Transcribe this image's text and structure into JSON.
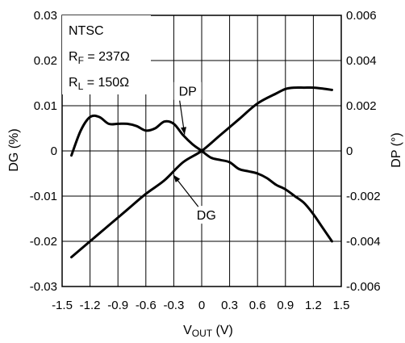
{
  "chart_data": {
    "type": "line",
    "xlabel": {
      "main": "V",
      "sub": "OUT",
      "unit": " (V)"
    },
    "ylabel_left": "DG (%)",
    "ylabel_right": "DP (°)",
    "xlim": [
      -1.5,
      1.5
    ],
    "ylim_left": [
      -0.03,
      0.03
    ],
    "ylim_right": [
      -0.006,
      0.006
    ],
    "grid": true,
    "x_ticks": [
      "-1.5",
      "-1.2",
      "-0.9",
      "-0.6",
      "-0.3",
      "0",
      "0.3",
      "0.6",
      "0.9",
      "1.2",
      "1.5"
    ],
    "y_ticks_left": [
      "0.03",
      "0.02",
      "0.01",
      "0",
      "-0.01",
      "-0.02",
      "-0.03"
    ],
    "y_ticks_right": [
      "0.006",
      "0.004",
      "0.002",
      "0",
      "-0.002",
      "-0.004",
      "-0.006"
    ],
    "conditions": [
      {
        "main": "NTSC",
        "sub": "",
        "rest": ""
      },
      {
        "main": "R",
        "sub": "F",
        "rest": " = 237Ω"
      },
      {
        "main": "R",
        "sub": "L",
        "rest": " = 150Ω"
      }
    ],
    "series": [
      {
        "name": "DG",
        "axis": "left",
        "x": [
          -1.4,
          -1.2,
          -1.0,
          -0.8,
          -0.6,
          -0.4,
          -0.2,
          0.0,
          0.2,
          0.4,
          0.6,
          0.8,
          0.9,
          1.0,
          1.1,
          1.2,
          1.3,
          1.4
        ],
        "y": [
          -0.0235,
          -0.02,
          -0.0165,
          -0.013,
          -0.0095,
          -0.0065,
          -0.0025,
          0.0,
          0.0035,
          0.007,
          0.0105,
          0.0127,
          0.0137,
          0.014,
          0.014,
          0.014,
          0.0138,
          0.0135
        ]
      },
      {
        "name": "DP",
        "axis": "right",
        "x": [
          -1.4,
          -1.3,
          -1.2,
          -1.1,
          -1.0,
          -0.9,
          -0.8,
          -0.7,
          -0.6,
          -0.5,
          -0.4,
          -0.3,
          -0.2,
          -0.1,
          0.0,
          0.1,
          0.2,
          0.3,
          0.4,
          0.5,
          0.6,
          0.7,
          0.8,
          0.9,
          1.0,
          1.1,
          1.2,
          1.3,
          1.4
        ],
        "y": [
          -0.0002,
          0.0009,
          0.0015,
          0.0015,
          0.0012,
          0.0012,
          0.0012,
          0.0011,
          0.0009,
          0.001,
          0.0013,
          0.0012,
          0.0007,
          0.0003,
          0.0,
          -0.0003,
          -0.0004,
          -0.0005,
          -0.0008,
          -0.0009,
          -0.001,
          -0.0012,
          -0.0015,
          -0.0017,
          -0.002,
          -0.0023,
          -0.0028,
          -0.0034,
          -0.004
        ]
      }
    ],
    "annotations": [
      {
        "text": "DP",
        "series": "DP",
        "x": -0.15,
        "y": 0.0122,
        "point_x": -0.18
      },
      {
        "text": "DG",
        "series": "DG",
        "x": 0.05,
        "y": -0.0152,
        "point_x": -0.32
      }
    ]
  }
}
